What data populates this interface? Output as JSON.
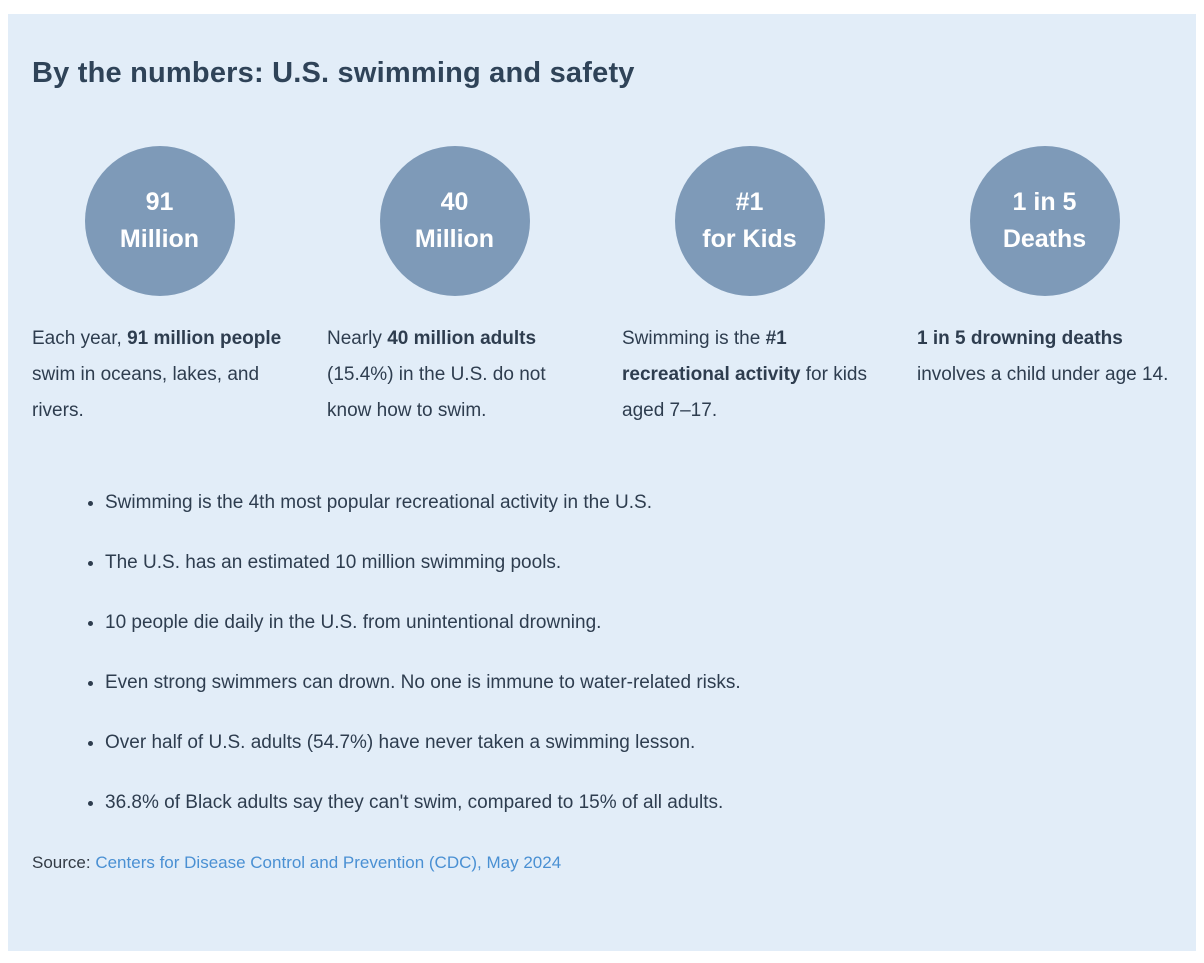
{
  "panel": {
    "title": "By the numbers: U.S. swimming and safety"
  },
  "stats": [
    {
      "circle": {
        "line1": "91",
        "line2": "Million"
      },
      "desc": {
        "pre": "Each year, ",
        "bold": "91 million people",
        "post": " swim in oceans, lakes, and rivers."
      }
    },
    {
      "circle": {
        "line1": "40",
        "line2": "Million"
      },
      "desc": {
        "pre": "Nearly ",
        "bold": "40 million adults",
        "post": " (15.4%) in the U.S. do not know how to swim."
      }
    },
    {
      "circle": {
        "line1": "#1",
        "line2": "for Kids"
      },
      "desc": {
        "pre": "Swimming is the ",
        "bold": "#1 recreational activity",
        "post": " for kids aged 7–17."
      }
    },
    {
      "circle": {
        "line1": "1 in 5",
        "line2": "Deaths"
      },
      "desc": {
        "pre": "",
        "bold": "1 in 5 drowning deaths",
        "post": " involves a child under age 14."
      }
    }
  ],
  "bullets": [
    "Swimming is the 4th most popular recreational activity in the U.S.",
    "The U.S. has an estimated 10 million swimming pools.",
    "10 people die daily in the U.S. from unintentional drowning.",
    "Even strong swimmers can drown. No one is immune to water-related risks.",
    "Over half of U.S. adults (54.7%) have never taken a swimming lesson.",
    "36.8% of Black adults say they can't swim, compared to 15% of all adults."
  ],
  "source": {
    "label": "Source:",
    "link_text": "Centers for Disease Control and Prevention (CDC), May 2024"
  },
  "colors": {
    "panel_bg": "#e2edf8",
    "circle_fill": "#7e9ab8",
    "heading": "#2f4358",
    "body_text": "#2e3d4f",
    "link": "#4a90d3"
  }
}
